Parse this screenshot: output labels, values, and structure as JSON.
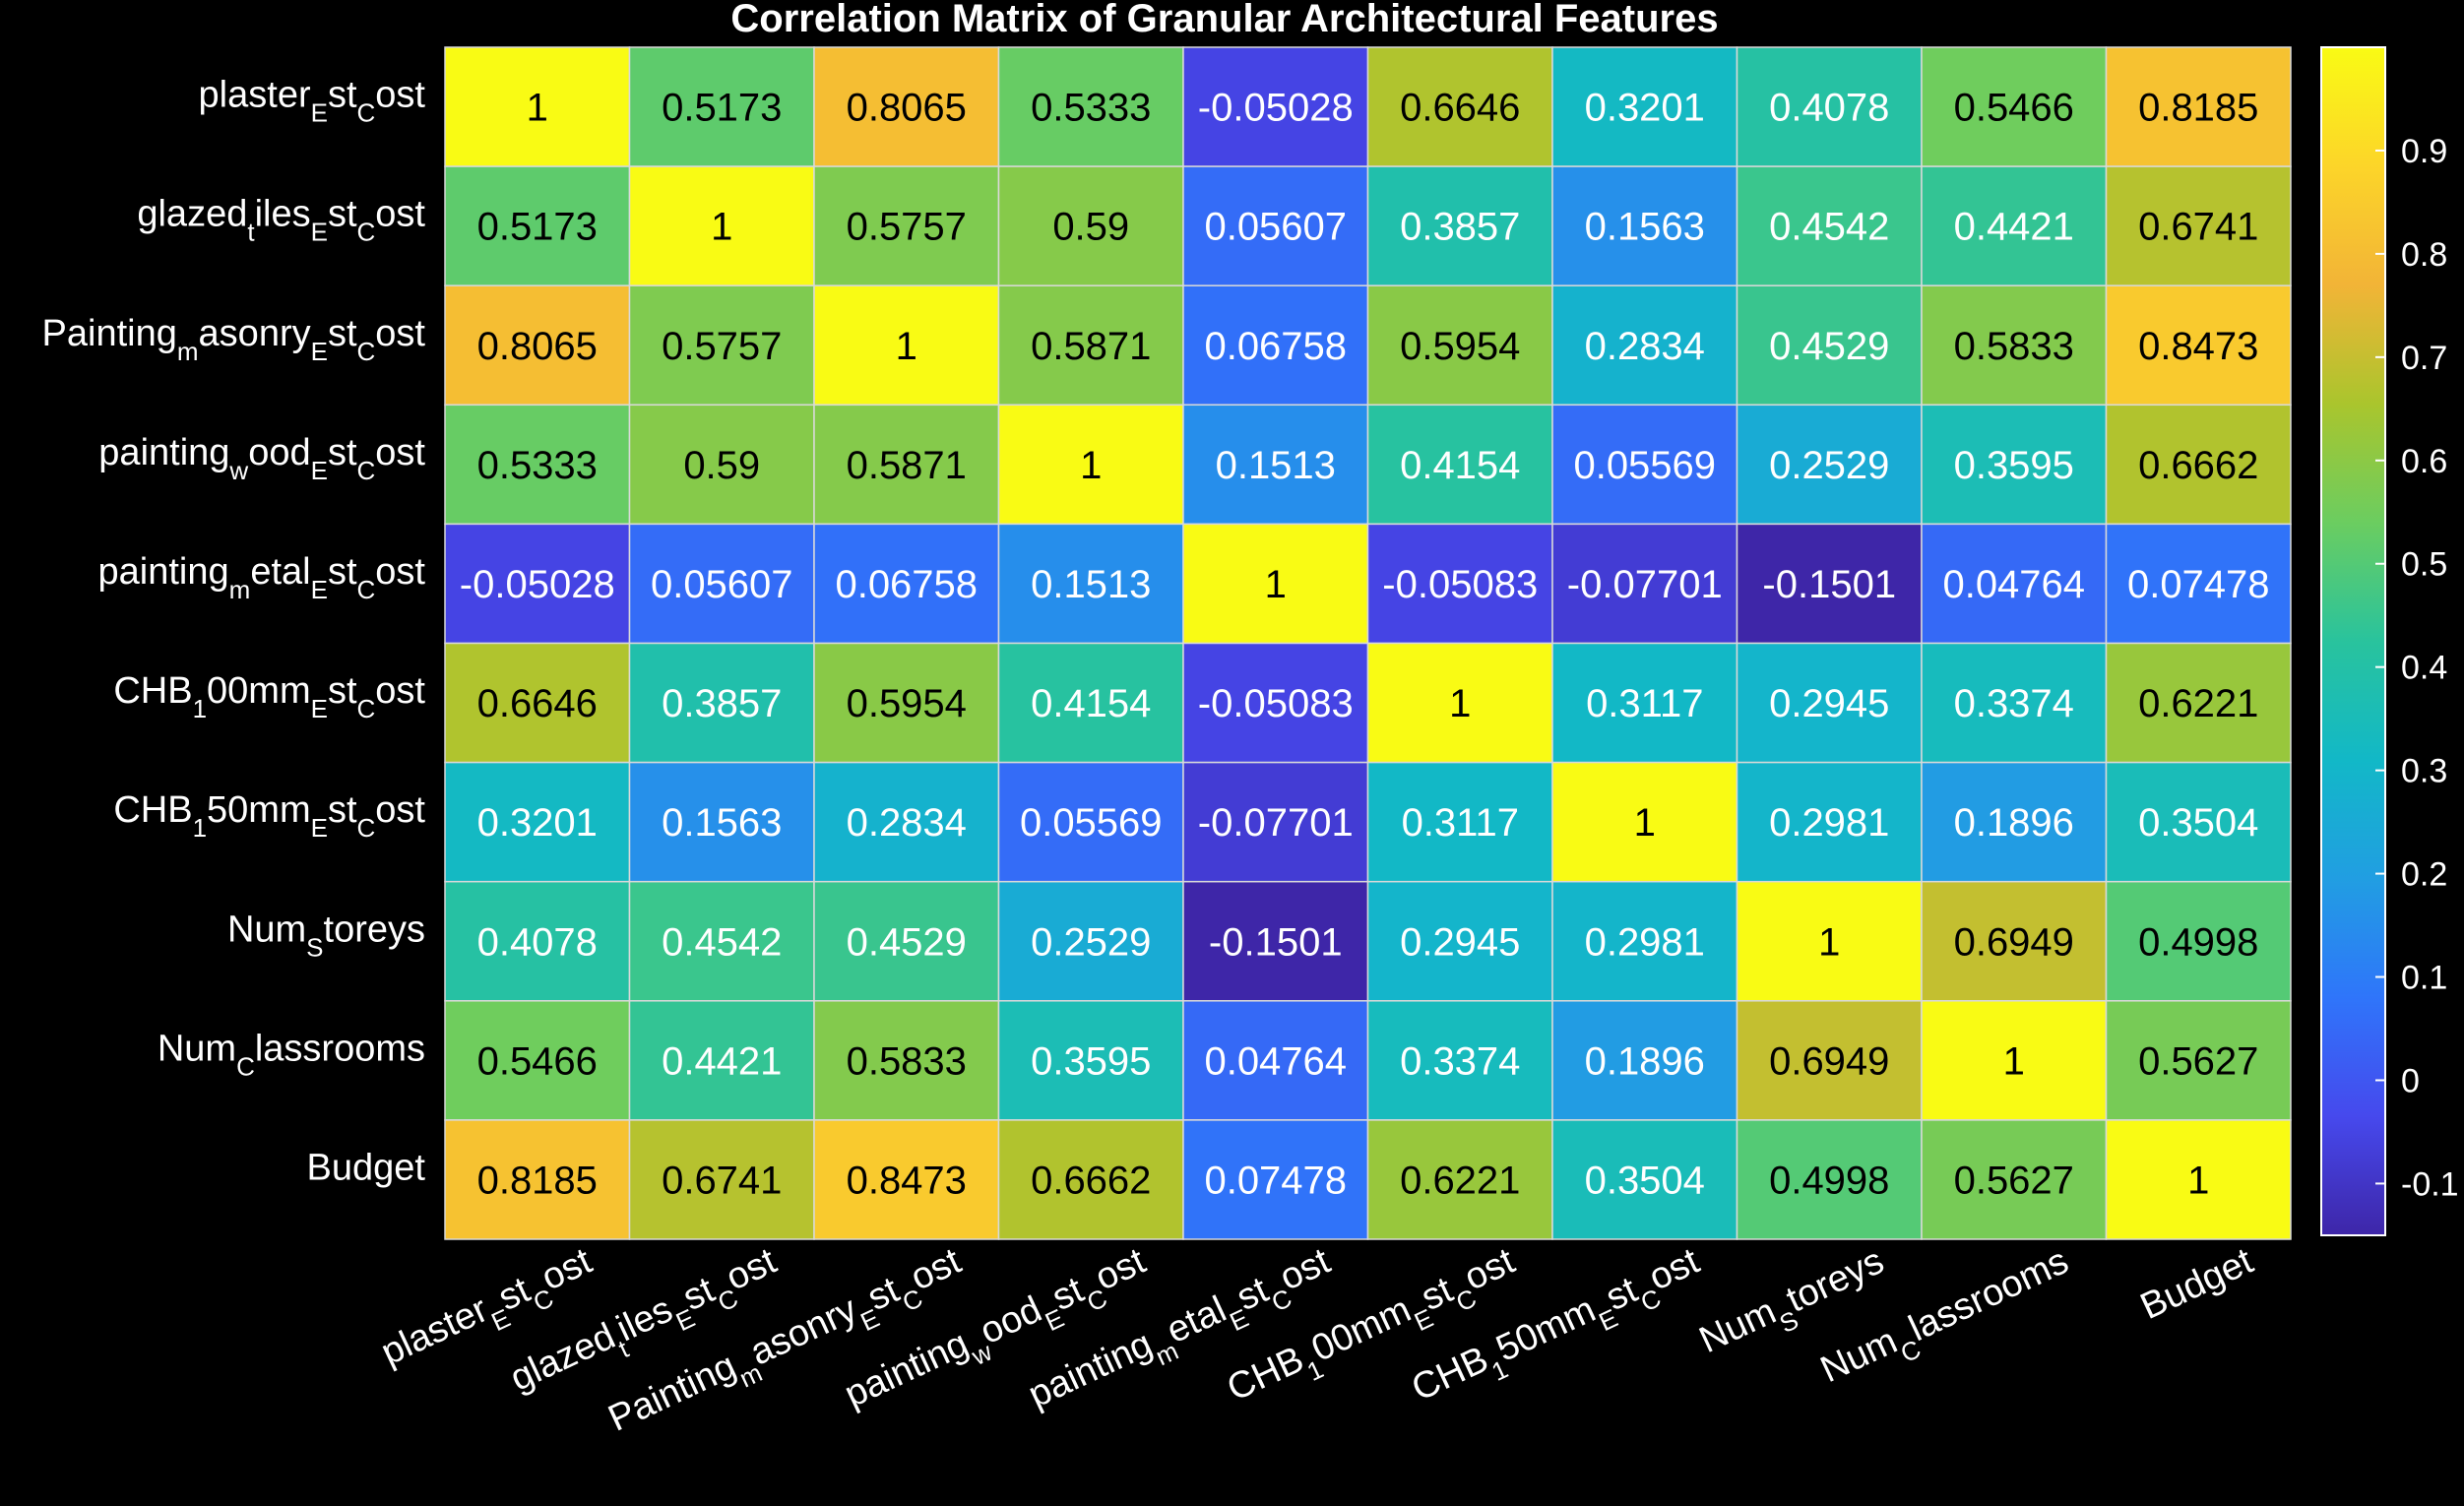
{
  "chart_data": {
    "type": "heatmap",
    "title": "Correlation Matrix of Granular Architectural Features",
    "row_labels": [
      {
        "base": "plaster",
        "parts": [
          [
            "plaster",
            ""
          ],
          [
            "E",
            "sub"
          ],
          [
            "st",
            ""
          ],
          [
            "C",
            "sub"
          ],
          [
            "ost",
            ""
          ]
        ]
      },
      {
        "base": "glazed",
        "parts": [
          [
            "glazed",
            ""
          ],
          [
            "t",
            "sub"
          ],
          [
            "iles",
            ""
          ],
          [
            "E",
            "sub"
          ],
          [
            "st",
            ""
          ],
          [
            "C",
            "sub"
          ],
          [
            "ost",
            ""
          ]
        ]
      },
      {
        "base": "Painting",
        "parts": [
          [
            "Painting",
            ""
          ],
          [
            "m",
            "sub"
          ],
          [
            "asonry",
            ""
          ],
          [
            "E",
            "sub"
          ],
          [
            "st",
            ""
          ],
          [
            "C",
            "sub"
          ],
          [
            "ost",
            ""
          ]
        ]
      },
      {
        "base": "painting",
        "parts": [
          [
            "painting",
            ""
          ],
          [
            "w",
            "sub"
          ],
          [
            "ood",
            ""
          ],
          [
            "E",
            "sub"
          ],
          [
            "st",
            ""
          ],
          [
            "C",
            "sub"
          ],
          [
            "ost",
            ""
          ]
        ]
      },
      {
        "base": "painting",
        "parts": [
          [
            "painting",
            ""
          ],
          [
            "m",
            "sub"
          ],
          [
            "etal",
            ""
          ],
          [
            "E",
            "sub"
          ],
          [
            "st",
            ""
          ],
          [
            "C",
            "sub"
          ],
          [
            "ost",
            ""
          ]
        ]
      },
      {
        "base": "CHB",
        "parts": [
          [
            "CHB",
            ""
          ],
          [
            "1",
            "sub"
          ],
          [
            "00mm",
            ""
          ],
          [
            "E",
            "sub"
          ],
          [
            "st",
            ""
          ],
          [
            "C",
            "sub"
          ],
          [
            "ost",
            ""
          ]
        ]
      },
      {
        "base": "CHB",
        "parts": [
          [
            "CHB",
            ""
          ],
          [
            "1",
            "sub"
          ],
          [
            "50mm",
            ""
          ],
          [
            "E",
            "sub"
          ],
          [
            "st",
            ""
          ],
          [
            "C",
            "sub"
          ],
          [
            "ost",
            ""
          ]
        ]
      },
      {
        "base": "Num",
        "parts": [
          [
            "Num",
            ""
          ],
          [
            "S",
            "sub"
          ],
          [
            "toreys",
            ""
          ]
        ]
      },
      {
        "base": "Num",
        "parts": [
          [
            "Num",
            ""
          ],
          [
            "C",
            "sub"
          ],
          [
            "lassrooms",
            ""
          ]
        ]
      },
      {
        "base": "Budget",
        "parts": [
          [
            "Budget",
            ""
          ]
        ]
      }
    ],
    "cell_text": [
      [
        "1",
        "0.5173",
        "0.8065",
        "0.5333",
        "-0.05028",
        "0.6646",
        "0.3201",
        "0.4078",
        "0.5466",
        "0.8185"
      ],
      [
        "0.5173",
        "1",
        "0.5757",
        "0.59",
        "0.05607",
        "0.3857",
        "0.1563",
        "0.4542",
        "0.4421",
        "0.6741"
      ],
      [
        "0.8065",
        "0.5757",
        "1",
        "0.5871",
        "0.06758",
        "0.5954",
        "0.2834",
        "0.4529",
        "0.5833",
        "0.8473"
      ],
      [
        "0.5333",
        "0.59",
        "0.5871",
        "1",
        "0.1513",
        "0.4154",
        "0.05569",
        "0.2529",
        "0.3595",
        "0.6662"
      ],
      [
        "-0.05028",
        "0.05607",
        "0.06758",
        "0.1513",
        "1",
        "-0.05083",
        "-0.07701",
        "-0.1501",
        "0.04764",
        "0.07478"
      ],
      [
        "0.6646",
        "0.3857",
        "0.5954",
        "0.4154",
        "-0.05083",
        "1",
        "0.3117",
        "0.2945",
        "0.3374",
        "0.6221"
      ],
      [
        "0.3201",
        "0.1563",
        "0.2834",
        "0.05569",
        "-0.07701",
        "0.3117",
        "1",
        "0.2981",
        "0.1896",
        "0.3504"
      ],
      [
        "0.4078",
        "0.4542",
        "0.4529",
        "0.2529",
        "-0.1501",
        "0.2945",
        "0.2981",
        "1",
        "0.6949",
        "0.4998"
      ],
      [
        "0.5466",
        "0.4421",
        "0.5833",
        "0.3595",
        "0.04764",
        "0.3374",
        "0.1896",
        "0.6949",
        "1",
        "0.5627"
      ],
      [
        "0.8185",
        "0.6741",
        "0.8473",
        "0.6662",
        "0.07478",
        "0.6221",
        "0.3504",
        "0.4998",
        "0.5627",
        "1"
      ]
    ],
    "values": [
      [
        1,
        0.5173,
        0.8065,
        0.5333,
        -0.05028,
        0.6646,
        0.3201,
        0.4078,
        0.5466,
        0.8185
      ],
      [
        0.5173,
        1,
        0.5757,
        0.59,
        0.05607,
        0.3857,
        0.1563,
        0.4542,
        0.4421,
        0.6741
      ],
      [
        0.8065,
        0.5757,
        1,
        0.5871,
        0.06758,
        0.5954,
        0.2834,
        0.4529,
        0.5833,
        0.8473
      ],
      [
        0.5333,
        0.59,
        0.5871,
        1,
        0.1513,
        0.4154,
        0.05569,
        0.2529,
        0.3595,
        0.6662
      ],
      [
        -0.05028,
        0.05607,
        0.06758,
        0.1513,
        1,
        -0.05083,
        -0.07701,
        -0.1501,
        0.04764,
        0.07478
      ],
      [
        0.6646,
        0.3857,
        0.5954,
        0.4154,
        -0.05083,
        1,
        0.3117,
        0.2945,
        0.3374,
        0.6221
      ],
      [
        0.3201,
        0.1563,
        0.2834,
        0.05569,
        -0.07701,
        0.3117,
        1,
        0.2981,
        0.1896,
        0.3504
      ],
      [
        0.4078,
        0.4542,
        0.4529,
        0.2529,
        -0.1501,
        0.2945,
        0.2981,
        1,
        0.6949,
        0.4998
      ],
      [
        0.5466,
        0.4421,
        0.5833,
        0.3595,
        0.04764,
        0.3374,
        0.1896,
        0.6949,
        1,
        0.5627
      ],
      [
        0.8185,
        0.6741,
        0.8473,
        0.6662,
        0.07478,
        0.6221,
        0.3504,
        0.4998,
        0.5627,
        1
      ]
    ],
    "colormap": "parula",
    "color_range": [
      -0.1501,
      1
    ],
    "colorbar_ticks": [
      {
        "value": 0.9,
        "label": "0.9"
      },
      {
        "value": 0.8,
        "label": "0.8"
      },
      {
        "value": 0.7,
        "label": "0.7"
      },
      {
        "value": 0.6,
        "label": "0.6"
      },
      {
        "value": 0.5,
        "label": "0.5"
      },
      {
        "value": 0.4,
        "label": "0.4"
      },
      {
        "value": 0.3,
        "label": "0.3"
      },
      {
        "value": 0.2,
        "label": "0.2"
      },
      {
        "value": 0.1,
        "label": "0.1"
      },
      {
        "value": 0,
        "label": "0"
      },
      {
        "value": -0.1,
        "label": "-0.1"
      }
    ],
    "colorbar_position": "right",
    "background": "#000000",
    "text_color": "#ffffff",
    "grid_color": "#d9d9d9"
  }
}
